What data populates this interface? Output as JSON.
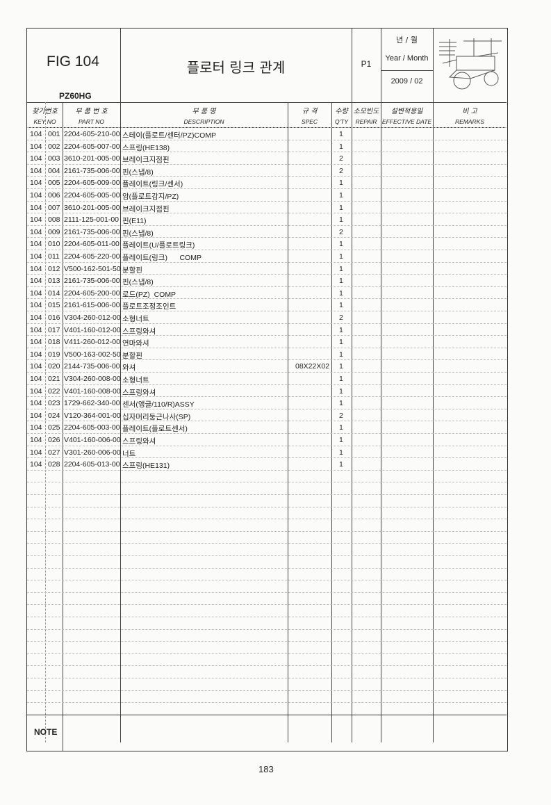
{
  "header": {
    "fig": "FIG 104",
    "model": "PZ60HG",
    "title": "플로터 링크 관계",
    "page_code": "P1",
    "year_month_ko": "년 / 월",
    "year_month_en": "Year / Month",
    "year_month_value": "2009 / 02",
    "illustration": "rice-transplanter-drawing"
  },
  "columns": [
    {
      "ko": "찾기번호",
      "en": "KEY NO"
    },
    {
      "ko": "부 품 번 호",
      "en": "PART NO"
    },
    {
      "ko": "부 품 명",
      "en": "DESCRIPTION"
    },
    {
      "ko": "규  격",
      "en": "SPEC"
    },
    {
      "ko": "수량",
      "en": "Q'TY"
    },
    {
      "ko": "소모빈도",
      "en": "REPAIR"
    },
    {
      "ko": "설변적용일",
      "en": "EFFECTIVE DATE"
    },
    {
      "ko": "비    고",
      "en": "REMARKS"
    }
  ],
  "rows": [
    {
      "fig": "104",
      "key": "001",
      "part": "2204-605-210-00",
      "desc": "스테이(플로트/센터/PZ)COMP",
      "spec": "",
      "qty": "1"
    },
    {
      "fig": "104",
      "key": "002",
      "part": "2204-605-007-00",
      "desc": "스프링(HE138)",
      "spec": "",
      "qty": "1"
    },
    {
      "fig": "104",
      "key": "003",
      "part": "3610-201-005-00",
      "desc": "브레이크지점핀",
      "spec": "",
      "qty": "2"
    },
    {
      "fig": "104",
      "key": "004",
      "part": "2161-735-006-00",
      "desc": "핀(스냅/8)",
      "spec": "",
      "qty": "2"
    },
    {
      "fig": "104",
      "key": "005",
      "part": "2204-605-009-00",
      "desc": "플레이트(링크/센서)",
      "spec": "",
      "qty": "1"
    },
    {
      "fig": "104",
      "key": "006",
      "part": "2204-605-005-00",
      "desc": "암(플로트감지/PZ)",
      "spec": "",
      "qty": "1"
    },
    {
      "fig": "104",
      "key": "007",
      "part": "3610-201-005-00",
      "desc": "브레이크지점핀",
      "spec": "",
      "qty": "1"
    },
    {
      "fig": "104",
      "key": "008",
      "part": "2111-125-001-00",
      "desc": "핀(E11)",
      "spec": "",
      "qty": "1"
    },
    {
      "fig": "104",
      "key": "009",
      "part": "2161-735-006-00",
      "desc": "핀(스냅/8)",
      "spec": "",
      "qty": "2"
    },
    {
      "fig": "104",
      "key": "010",
      "part": "2204-605-011-00",
      "desc": "플레이트(U/플로트링크)",
      "spec": "",
      "qty": "1"
    },
    {
      "fig": "104",
      "key": "011",
      "part": "2204-605-220-00",
      "desc": "플레이트(링크)      COMP",
      "spec": "",
      "qty": "1"
    },
    {
      "fig": "104",
      "key": "012",
      "part": "V500-162-501-50",
      "desc": "분할핀",
      "spec": "",
      "qty": "1"
    },
    {
      "fig": "104",
      "key": "013",
      "part": "2161-735-006-00",
      "desc": "핀(스냅/8)",
      "spec": "",
      "qty": "1"
    },
    {
      "fig": "104",
      "key": "014",
      "part": "2204-605-200-00",
      "desc": "로드(PZ)  COMP",
      "spec": "",
      "qty": "1"
    },
    {
      "fig": "104",
      "key": "015",
      "part": "2161-615-006-00",
      "desc": "플로트조정조인트",
      "spec": "",
      "qty": "1"
    },
    {
      "fig": "104",
      "key": "016",
      "part": "V304-260-012-00",
      "desc": "소형너트",
      "spec": "",
      "qty": "2"
    },
    {
      "fig": "104",
      "key": "017",
      "part": "V401-160-012-00",
      "desc": "스프링와셔",
      "spec": "",
      "qty": "1"
    },
    {
      "fig": "104",
      "key": "018",
      "part": "V411-260-012-00",
      "desc": "연마와셔",
      "spec": "",
      "qty": "1"
    },
    {
      "fig": "104",
      "key": "019",
      "part": "V500-163-002-50",
      "desc": "분할핀",
      "spec": "",
      "qty": "1"
    },
    {
      "fig": "104",
      "key": "020",
      "part": "2144-735-006-00",
      "desc": "와셔",
      "spec": "08X22X02",
      "qty": "1"
    },
    {
      "fig": "104",
      "key": "021",
      "part": "V304-260-008-00",
      "desc": "소형너트",
      "spec": "",
      "qty": "1"
    },
    {
      "fig": "104",
      "key": "022",
      "part": "V401-160-008-00",
      "desc": "스프링와셔",
      "spec": "",
      "qty": "1"
    },
    {
      "fig": "104",
      "key": "023",
      "part": "1729-662-340-00",
      "desc": "센서(앵글/110/R)ASSY",
      "spec": "",
      "qty": "1"
    },
    {
      "fig": "104",
      "key": "024",
      "part": "V120-364-001-00",
      "desc": "십자머리둥근나사(SP)",
      "spec": "",
      "qty": "2"
    },
    {
      "fig": "104",
      "key": "025",
      "part": "2204-605-003-00",
      "desc": "플레이트(플로트센서)",
      "spec": "",
      "qty": "1"
    },
    {
      "fig": "104",
      "key": "026",
      "part": "V401-160-006-00",
      "desc": "스프링와셔",
      "spec": "",
      "qty": "1"
    },
    {
      "fig": "104",
      "key": "027",
      "part": "V301-260-006-00",
      "desc": "너트",
      "spec": "",
      "qty": "1"
    },
    {
      "fig": "104",
      "key": "028",
      "part": "2204-605-013-00",
      "desc": "스프링(HE131)",
      "spec": "",
      "qty": "1"
    }
  ],
  "note_label": "NOTE",
  "page_number": "183"
}
